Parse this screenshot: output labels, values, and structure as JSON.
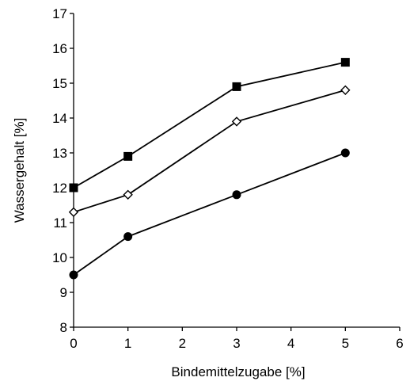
{
  "chart_data": {
    "type": "line",
    "title": "",
    "xlabel": "Bindemittelzugabe [%]",
    "ylabel": "Wassergehalt [%]",
    "xlim": [
      0,
      6
    ],
    "ylim": [
      8,
      17
    ],
    "xticks": [
      "0",
      "1",
      "2",
      "3",
      "4",
      "5",
      "6"
    ],
    "yticks": [
      "8",
      "9",
      "10",
      "11",
      "12",
      "13",
      "14",
      "15",
      "16",
      "17"
    ],
    "grid": false,
    "legend": "none",
    "x": [
      0,
      1,
      3,
      5
    ],
    "series": [
      {
        "marker": "square",
        "color": "#000000",
        "values": [
          12.0,
          12.9,
          14.9,
          15.6
        ]
      },
      {
        "marker": "diamond-open",
        "color": "#000000",
        "values": [
          11.3,
          11.8,
          13.9,
          14.8
        ]
      },
      {
        "marker": "circle",
        "color": "#000000",
        "values": [
          9.5,
          10.6,
          11.8,
          13.0
        ]
      }
    ]
  }
}
